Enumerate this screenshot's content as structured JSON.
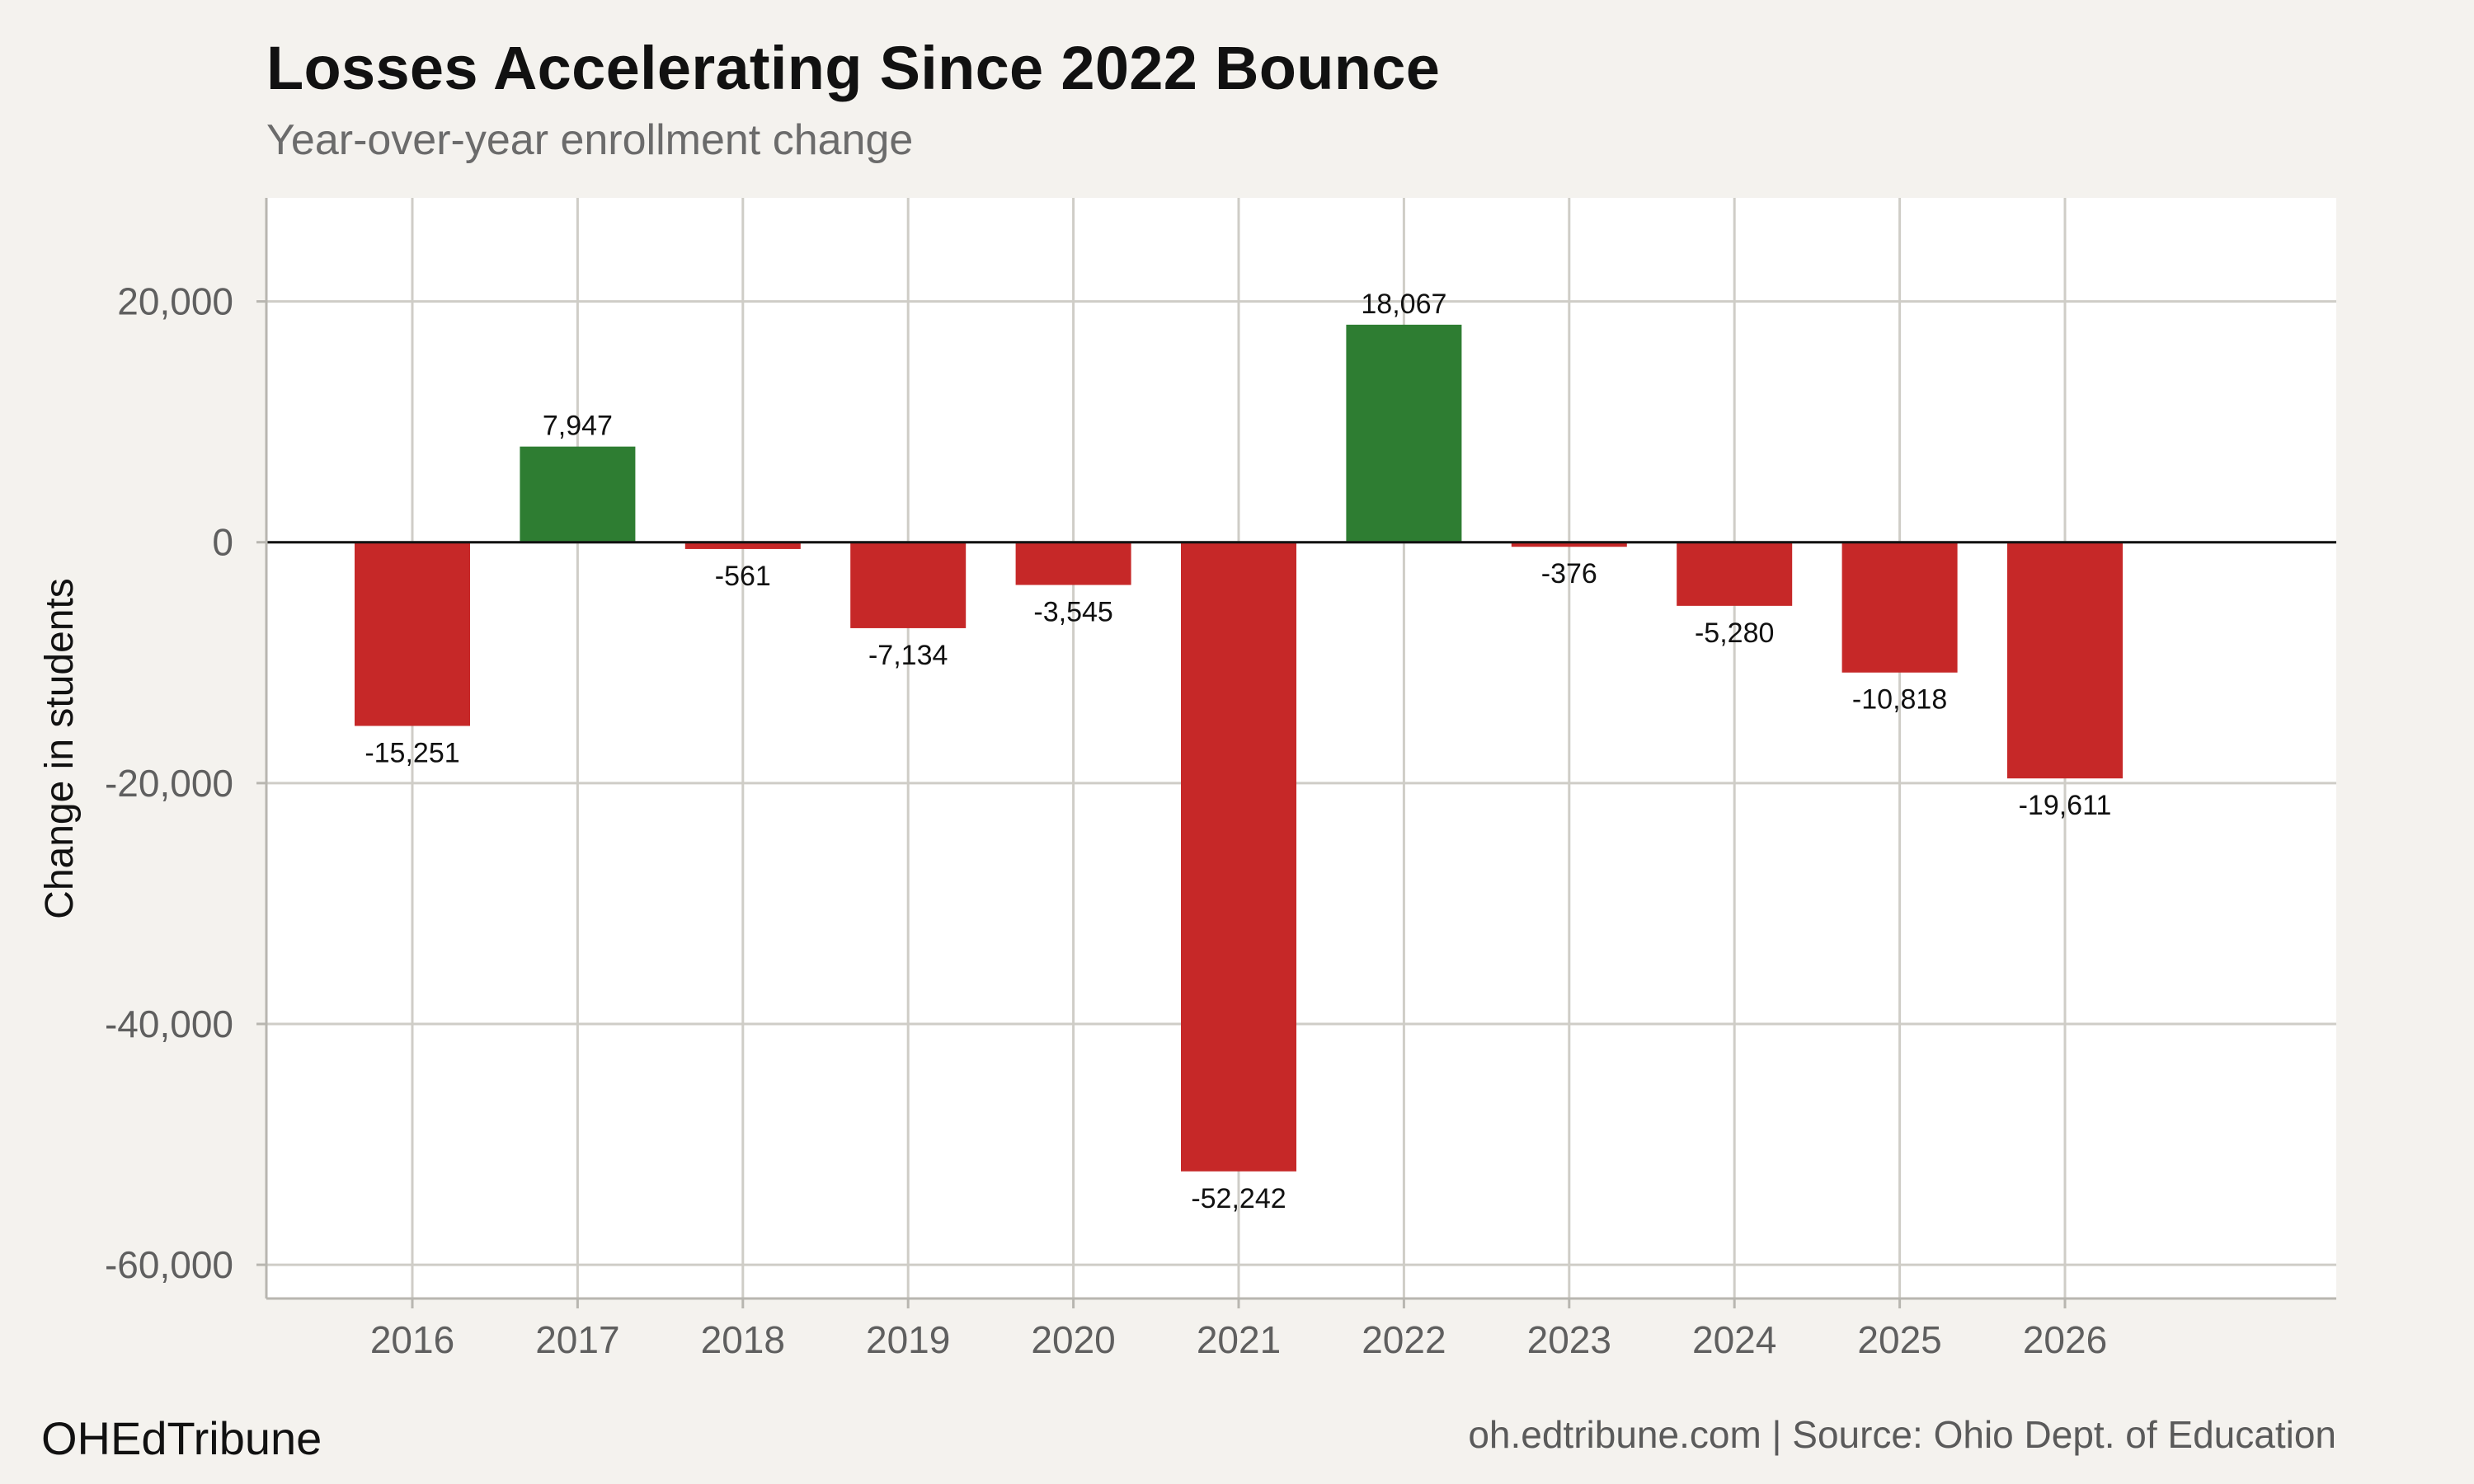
{
  "header": {
    "title": "Losses Accelerating Since 2022 Bounce",
    "subtitle": "Year-over-year enrollment change"
  },
  "footer": {
    "brand": "OHEdTribune",
    "source": "oh.edtribune.com | Source: Ohio Dept. of Education"
  },
  "colors": {
    "positive": "#2e7d32",
    "negative": "#c62828",
    "panel": "#ffffff",
    "background": "#f4f2ee",
    "grid": "#cfcdc7",
    "zero_line": "#111111"
  },
  "chart_data": {
    "type": "bar",
    "title": "Losses Accelerating Since 2022 Bounce",
    "subtitle": "Year-over-year enrollment change",
    "xlabel": "",
    "ylabel": "Change in students",
    "categories": [
      "2016",
      "2017",
      "2018",
      "2019",
      "2020",
      "2021",
      "2022",
      "2023",
      "2024",
      "2025",
      "2026"
    ],
    "values": [
      -15251,
      7947,
      -561,
      -7134,
      -3545,
      -52242,
      18067,
      -376,
      -5280,
      -10818,
      -19611
    ],
    "data_labels": [
      "-15,251",
      "7,947",
      "-561",
      "-7,134",
      "-3,545",
      "-52,242",
      "18,067",
      "-376",
      "-5,280",
      "-10,818",
      "-19,611"
    ],
    "y_ticks": [
      20000,
      0,
      -20000,
      -40000,
      -60000
    ],
    "y_tick_labels": [
      "20,000",
      "0",
      "-20,000",
      "-40,000",
      "-60,000"
    ],
    "ylim": [
      -62800,
      28600
    ],
    "grid": true,
    "legend": "none"
  }
}
